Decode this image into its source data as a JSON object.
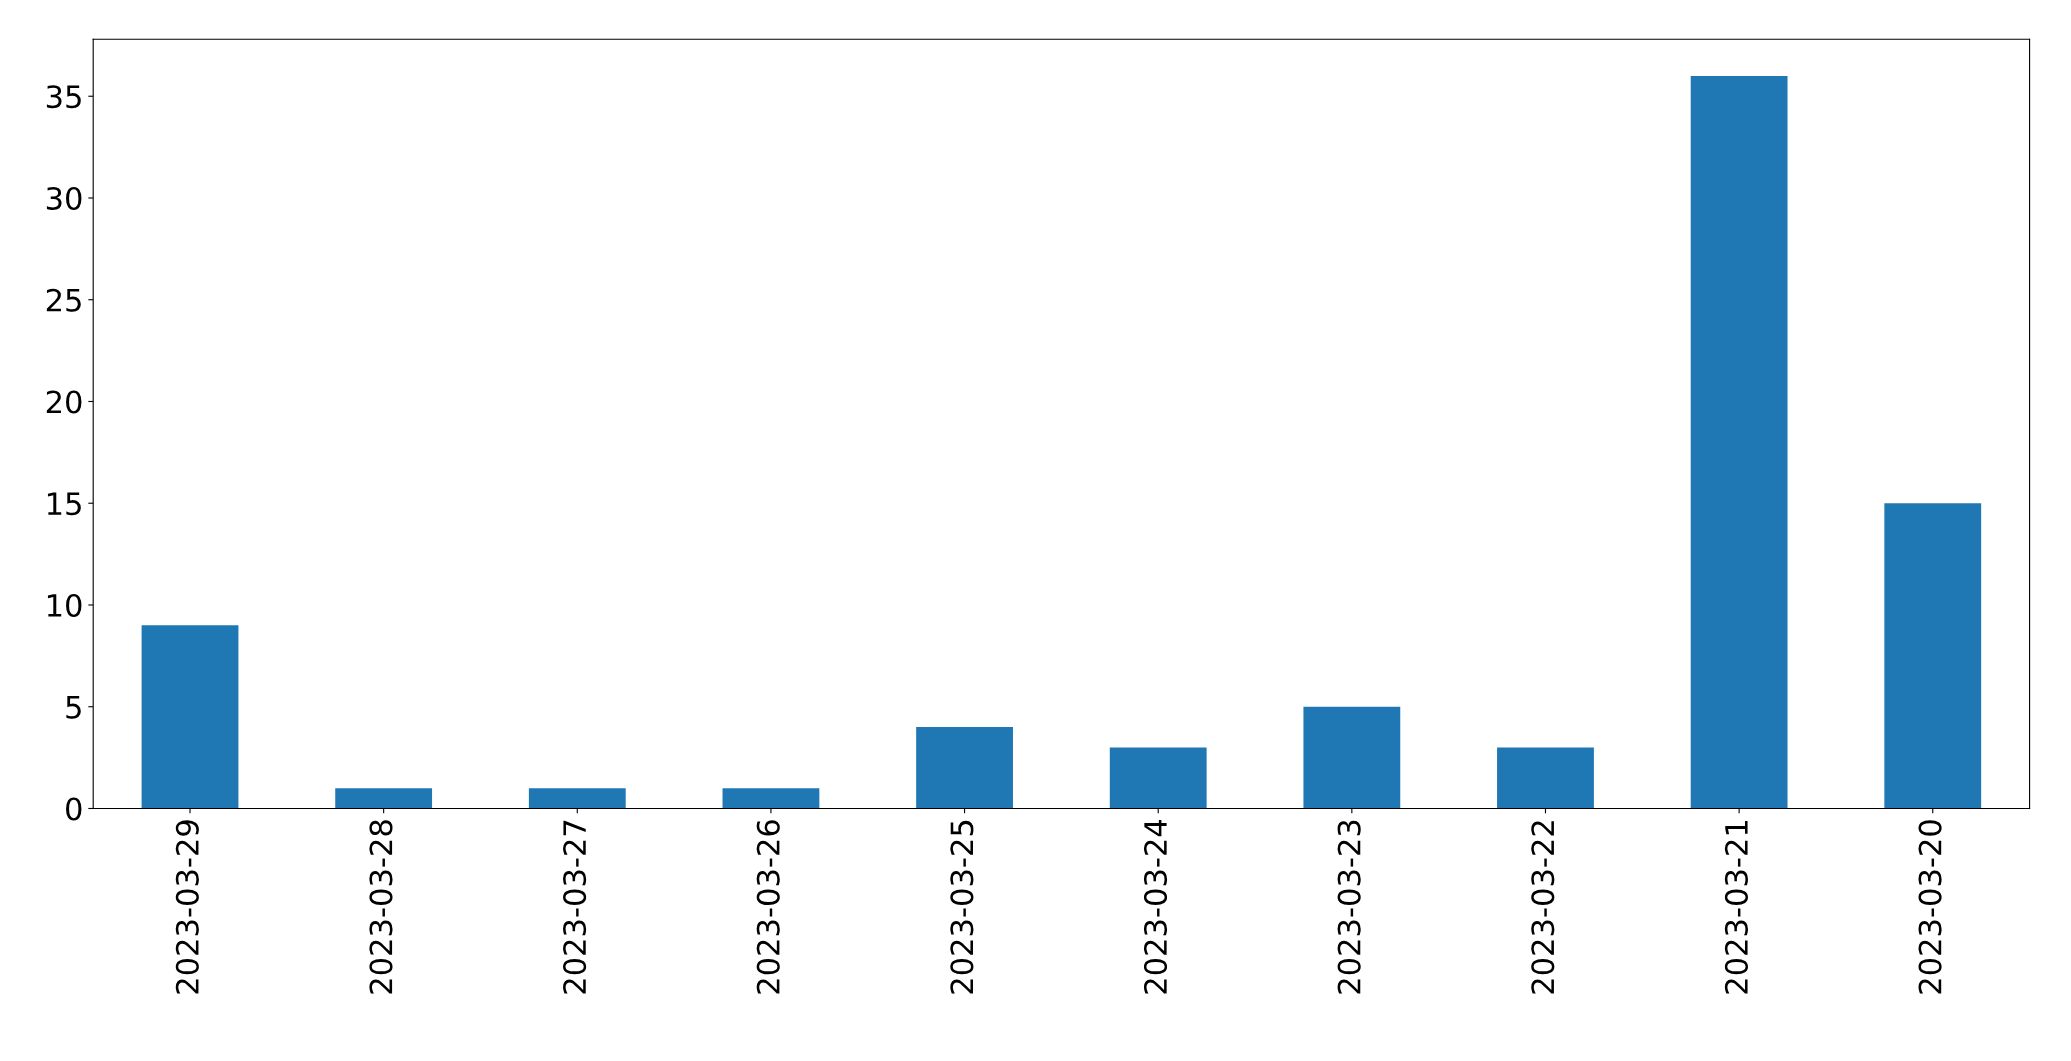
{
  "chart_data": {
    "type": "bar",
    "categories": [
      "2023-03-29",
      "2023-03-28",
      "2023-03-27",
      "2023-03-26",
      "2023-03-25",
      "2023-03-24",
      "2023-03-23",
      "2023-03-22",
      "2023-03-21",
      "2023-03-20"
    ],
    "values": [
      9,
      1,
      1,
      1,
      4,
      3,
      5,
      3,
      36,
      15
    ],
    "color": "#1f77b4",
    "ylim": [
      0,
      37.8
    ],
    "yticks": [
      0,
      5,
      10,
      15,
      20,
      25,
      30,
      35
    ],
    "grid": false,
    "legend": false
  }
}
